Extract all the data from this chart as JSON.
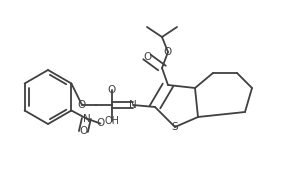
{
  "bg_color": "#ffffff",
  "line_color": "#404040",
  "line_width": 1.3,
  "atoms": {
    "S": "S",
    "O": "O",
    "N": "N",
    "NO2_N": "N",
    "NO2_O1": "O",
    "NO2_O2": "O",
    "OH": "OH"
  },
  "figsize": [
    2.82,
    1.87
  ],
  "dpi": 100
}
